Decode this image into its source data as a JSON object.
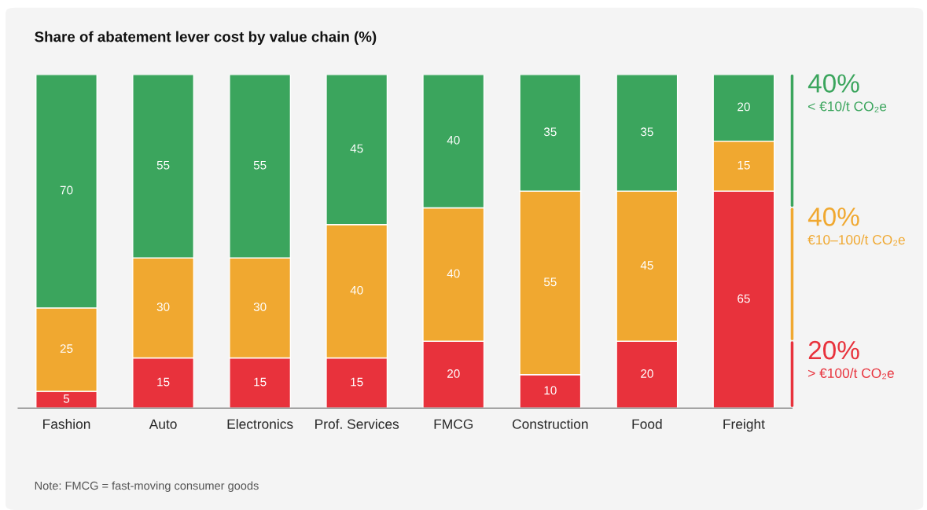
{
  "chart_data": {
    "type": "bar",
    "title": "Share of abatement lever cost by value chain (%)",
    "categories": [
      "Fashion",
      "Auto",
      "Electronics",
      "Prof. Services",
      "FMCG",
      "Construction",
      "Food",
      "Freight"
    ],
    "stacked": true,
    "series": [
      {
        "color": "#e8323c",
        "values": [
          5,
          15,
          15,
          15,
          20,
          10,
          20,
          65
        ]
      },
      {
        "color": "#f0a830",
        "values": [
          25,
          30,
          30,
          40,
          40,
          55,
          45,
          15
        ]
      },
      {
        "color": "#3ba55d",
        "values": [
          70,
          55,
          55,
          45,
          40,
          35,
          35,
          20
        ]
      }
    ],
    "ylim": [
      0,
      100
    ],
    "tick_labels": "x",
    "data_labels": true,
    "annotations": [
      "40%",
      "< €10/t CO₂e",
      "40%",
      "€10–100/t CO₂e",
      "20%",
      "> €100/t CO₂e",
      "Note: FMCG = fast-moving consumer goods"
    ]
  }
}
